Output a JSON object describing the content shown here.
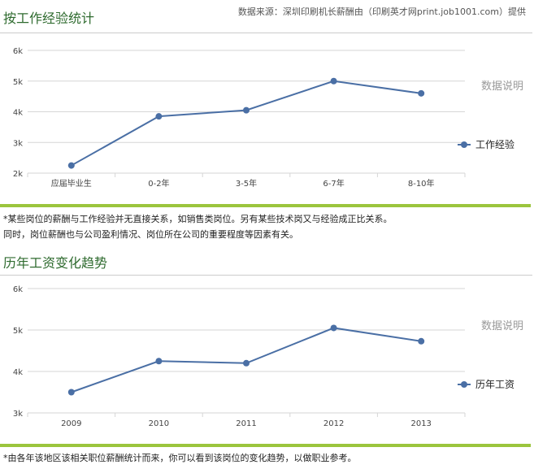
{
  "source": "数据来源：深圳印刷机长薪酬由（印刷英才网print.job1001.com）提供",
  "colors": {
    "accent": "#4a6fa5",
    "title_green": "#2f6b2f",
    "rule_green": "#9bc53d"
  },
  "chart_data": [
    {
      "type": "line",
      "title": "按工作经验统计",
      "side_label": "数据说明",
      "categories": [
        "应届毕业生",
        "0-2年",
        "3-5年",
        "6-7年",
        "8-10年"
      ],
      "series": [
        {
          "name": "工作经验",
          "values": [
            2250,
            3850,
            4050,
            5000,
            4600
          ]
        }
      ],
      "ylim": [
        2000,
        6000
      ],
      "yticks": [
        "2k",
        "3k",
        "4k",
        "5k",
        "6k"
      ],
      "grid": true,
      "legend": "right"
    },
    {
      "type": "line",
      "title": "历年工资变化趋势",
      "side_label": "数据说明",
      "categories": [
        "2009",
        "2010",
        "2011",
        "2012",
        "2013"
      ],
      "series": [
        {
          "name": "历年工资",
          "values": [
            3500,
            4250,
            4200,
            5050,
            4730
          ]
        }
      ],
      "ylim": [
        3000,
        6000
      ],
      "yticks": [
        "3k",
        "4k",
        "5k",
        "6k"
      ],
      "grid": true,
      "legend": "right"
    }
  ],
  "notes": {
    "chart1": [
      "*某些岗位的薪酬与工作经验并无直接关系，如销售类岗位。另有某些技术岗又与经验成正比关系。",
      "同时，岗位薪酬也与公司盈利情况、岗位所在公司的重要程度等因素有关。"
    ],
    "chart2": [
      "*由各年该地区该相关职位薪酬统计而来，你可以看到该岗位的变化趋势，以做职业参考。"
    ]
  }
}
